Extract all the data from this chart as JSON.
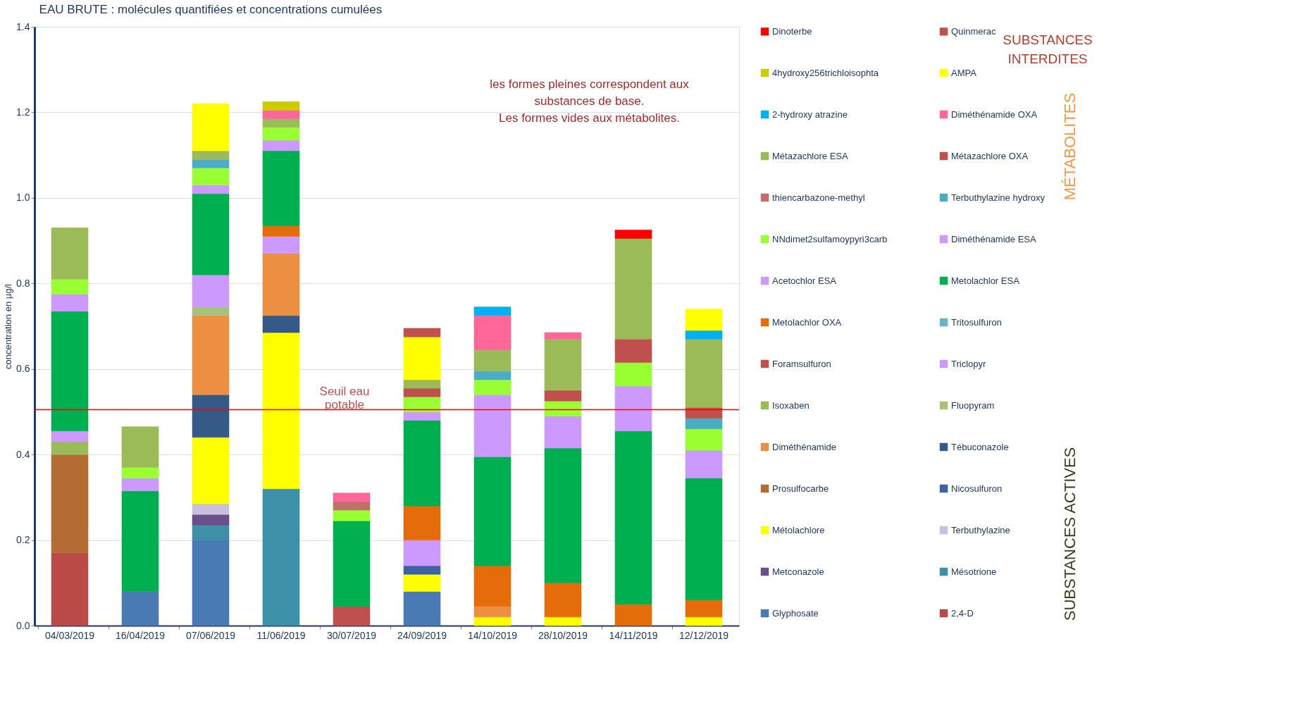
{
  "chart_data": {
    "type": "bar",
    "stacked": true,
    "title": "EAU BRUTE : molécules quantifiées et concentrations cumulées",
    "ylabel": "concentration en µg/l",
    "categories": [
      "04/03/2019",
      "16/04/2019",
      "07/06/2019",
      "11/06/2019",
      "30/07/2019",
      "24/09/2019",
      "14/10/2019",
      "28/10/2019",
      "14/11/2019",
      "12/12/2019"
    ],
    "ylim": [
      0,
      1.4
    ],
    "yticks": [
      {
        "value": 0,
        "label": "0.0"
      },
      {
        "value": 0.2,
        "label": "0.2"
      },
      {
        "value": 0.4,
        "label": "0.4"
      },
      {
        "value": 0.6,
        "label": "0.6"
      },
      {
        "value": 0.8,
        "label": "0.8"
      },
      {
        "value": 1.0,
        "label": "1.0"
      },
      {
        "value": 1.2,
        "label": "1.2"
      },
      {
        "value": 1.4,
        "label": "1.4"
      }
    ],
    "grid": "y",
    "legend": "right",
    "ref_lines": [
      {
        "axis": "y",
        "value": 0.505,
        "label": "Seuil eau\npotable",
        "color": "#ff0000"
      }
    ],
    "annotations": [
      "les formes pleines correspondent aux\nsubstances de base.\nLes formes vides aux métabolites.",
      "SUBSTANCES\nINTERDITES",
      "MÉTABOLITES",
      "SUBSTANCES ACTIVES"
    ],
    "series": [
      {
        "name": "2,4-D",
        "color": "#b94a48",
        "values": [
          0.17,
          null,
          null,
          null,
          null,
          null,
          null,
          null,
          null,
          null
        ]
      },
      {
        "name": "Glyphosate",
        "color": "#4a7ab4",
        "values": [
          null,
          0.08,
          0.2,
          null,
          null,
          0.08,
          null,
          null,
          null,
          null
        ]
      },
      {
        "name": "Mésotrione",
        "color": "#3e8fa8",
        "values": [
          null,
          null,
          0.035,
          0.32,
          null,
          null,
          null,
          null,
          null,
          null
        ]
      },
      {
        "name": "Metconazole",
        "color": "#6b4f8a",
        "values": [
          null,
          null,
          0.025,
          null,
          null,
          null,
          null,
          null,
          null,
          null
        ]
      },
      {
        "name": "Terbuthylazine",
        "color": "#c8c0dc",
        "values": [
          null,
          null,
          0.025,
          null,
          null,
          null,
          null,
          null,
          null,
          null
        ]
      },
      {
        "name": "Métolachlore",
        "color": "#ffff00",
        "values": [
          null,
          null,
          0.155,
          0.365,
          null,
          0.04,
          0.02,
          0.02,
          null,
          0.02
        ]
      },
      {
        "name": "Nicosulfuron",
        "color": "#3e64a0",
        "values": [
          null,
          null,
          null,
          null,
          null,
          0.02,
          null,
          null,
          null,
          null
        ]
      },
      {
        "name": "Prosulfocarbe",
        "color": "#b46c32",
        "values": [
          0.23,
          null,
          null,
          null,
          null,
          null,
          null,
          null,
          null,
          null
        ]
      },
      {
        "name": "Tébuconazole",
        "color": "#355a88",
        "values": [
          null,
          null,
          0.1,
          0.04,
          null,
          null,
          null,
          null,
          null,
          null
        ]
      },
      {
        "name": "Diméthénamide",
        "color": "#ec8f42",
        "values": [
          null,
          null,
          0.185,
          0.145,
          null,
          null,
          0.025,
          null,
          null,
          null
        ]
      },
      {
        "name": "Fluopyram",
        "color": "#a6c27a",
        "values": [
          null,
          null,
          0.02,
          null,
          null,
          null,
          null,
          null,
          null,
          null
        ]
      },
      {
        "name": "Isoxaben",
        "color": "#9bbb59",
        "values": [
          0.03,
          null,
          null,
          null,
          null,
          null,
          null,
          null,
          null,
          null
        ]
      },
      {
        "name": "Triclopyr",
        "color": "#cc99ff",
        "values": [
          0.025,
          null,
          0.075,
          0.04,
          null,
          0.06,
          null,
          null,
          null,
          null
        ]
      },
      {
        "name": "Foramsulfuron",
        "color": "#c0504d",
        "values": [
          null,
          null,
          null,
          null,
          0.045,
          null,
          null,
          null,
          null,
          null
        ]
      },
      {
        "name": "Tritosulfuron",
        "color": "#6fb0d0",
        "values": [
          null,
          null,
          null,
          null,
          null,
          null,
          null,
          null,
          null,
          null
        ]
      },
      {
        "name": "Metolachlor OXA",
        "color": "#e46c0a",
        "values": [
          null,
          null,
          null,
          0.025,
          null,
          0.08,
          0.095,
          0.08,
          0.05,
          0.04
        ]
      },
      {
        "name": "Metolachlor ESA",
        "color": "#00b050",
        "values": [
          0.28,
          0.235,
          0.19,
          0.175,
          0.2,
          0.2,
          0.255,
          0.315,
          0.405,
          0.285
        ]
      },
      {
        "name": "Acetochlor ESA",
        "color": "#cc99ff",
        "values": [
          null,
          null,
          null,
          null,
          null,
          null,
          0.02,
          null,
          null,
          null
        ]
      },
      {
        "name": "Diméthénamide ESA",
        "color": "#cc99ff",
        "values": [
          0.04,
          0.03,
          0.02,
          0.025,
          null,
          0.02,
          0.125,
          0.075,
          0.105,
          0.065
        ]
      },
      {
        "name": "NNdimet2sulfamoypyri3carb",
        "color": "#99ff33",
        "values": [
          0.035,
          0.025,
          0.04,
          0.03,
          0.025,
          0.035,
          0.035,
          0.035,
          0.055,
          0.05
        ]
      },
      {
        "name": "Terbuthylazine hydroxy",
        "color": "#4bacc6",
        "values": [
          null,
          null,
          0.02,
          null,
          null,
          null,
          0.02,
          null,
          null,
          0.025
        ]
      },
      {
        "name": "thiencarbazone-methyl",
        "color": "#c0706b",
        "values": [
          null,
          null,
          null,
          null,
          0.02,
          null,
          null,
          null,
          null,
          null
        ]
      },
      {
        "name": "Métazachlore OXA",
        "color": "#c0504d",
        "values": [
          null,
          null,
          null,
          null,
          null,
          0.02,
          null,
          0.025,
          0.055,
          0.025
        ]
      },
      {
        "name": "Métazachlore ESA",
        "color": "#9bbb59",
        "values": [
          0.12,
          0.095,
          0.02,
          0.02,
          null,
          0.02,
          0.05,
          0.12,
          0.235,
          0.16
        ]
      },
      {
        "name": "Diméthénamide OXA",
        "color": "#ff6699",
        "values": [
          null,
          null,
          null,
          0.02,
          0.02,
          null,
          0.08,
          0.015,
          null,
          null
        ]
      },
      {
        "name": "2-hydroxy atrazine",
        "color": "#00b0f0",
        "values": [
          null,
          null,
          null,
          null,
          null,
          null,
          0.02,
          null,
          null,
          0.02
        ]
      },
      {
        "name": "AMPA",
        "color": "#ffff00",
        "values": [
          null,
          null,
          0.11,
          null,
          null,
          0.1,
          null,
          null,
          null,
          0.05
        ]
      },
      {
        "name": "4hydroxy256trichloisophta",
        "color": "#cccc00",
        "values": [
          null,
          null,
          null,
          0.02,
          null,
          null,
          null,
          null,
          null,
          null
        ]
      },
      {
        "name": "Quinmerac",
        "color": "#c0504d",
        "values": [
          null,
          null,
          null,
          null,
          null,
          0.02,
          null,
          null,
          null,
          null
        ]
      },
      {
        "name": "Dinoterbe",
        "color": "#ff0000",
        "values": [
          null,
          null,
          null,
          null,
          null,
          null,
          null,
          null,
          0.02,
          null
        ]
      }
    ]
  }
}
